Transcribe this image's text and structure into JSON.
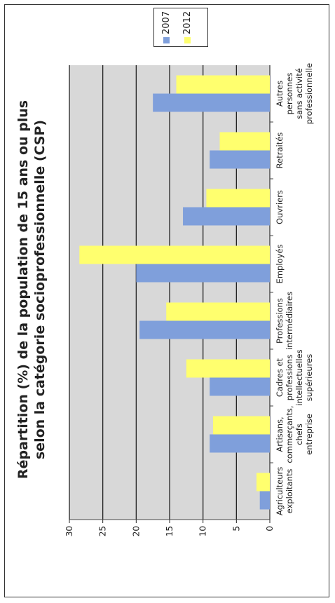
{
  "chart_data": {
    "type": "bar",
    "title": "Répartition (%) de la population de 15 ans ou plus selon la catégorie socioprofessionnelle (CSP)",
    "categories": [
      "Agriculteurs exploitants",
      "Artisans, commerçants, chefs entreprise",
      "Cadres et professions intellectuelles supérieures",
      "Professions intermédiaires",
      "Employés",
      "Ouvriers",
      "Retraités",
      "Autres personnes sans activité professionnelle"
    ],
    "series": [
      {
        "name": "2007",
        "values": [
          1.5,
          9,
          9,
          19.5,
          20,
          13,
          9,
          17.5
        ]
      },
      {
        "name": "2012",
        "values": [
          2,
          8.5,
          12.5,
          15.5,
          28.5,
          9.5,
          7.5,
          14
        ]
      }
    ],
    "ylim": [
      0,
      30
    ],
    "yticks": [
      0,
      5,
      10,
      15,
      20,
      25,
      30
    ],
    "grid": true,
    "legend_position": "top-right",
    "colors": {
      "2007": "#7f9fdb",
      "2012": "#ffff6e",
      "plot_background": "#d8d8d8",
      "grid": "#222222"
    }
  }
}
